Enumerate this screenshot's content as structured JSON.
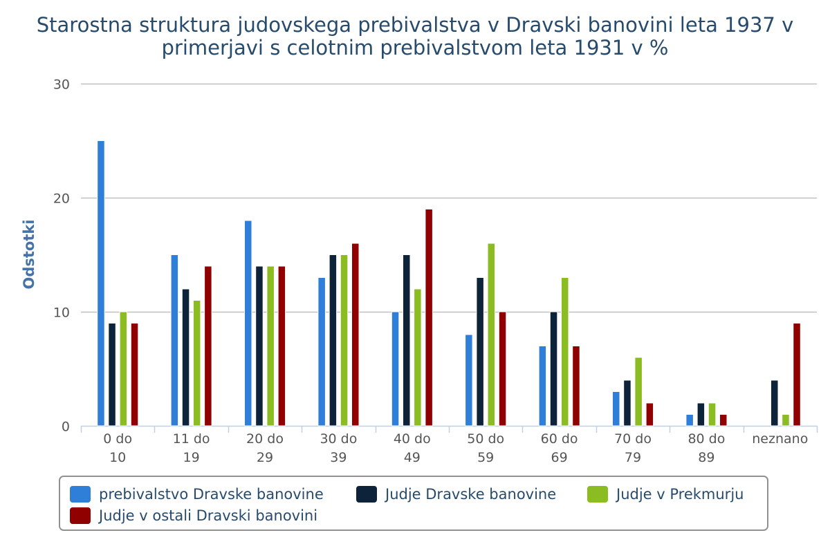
{
  "chart_data": {
    "type": "bar",
    "title": "Starostna struktura judovskega prebivalstva v Dravski banovini leta 1937 v primerjavi s celotnim prebivalstvom leta 1931 v %",
    "ylabel": "Odstotki",
    "xlabel": "",
    "ylim": [
      0,
      30
    ],
    "yticks": [
      0,
      10,
      20,
      30
    ],
    "grid": true,
    "legend_position": "bottom",
    "categories": [
      [
        "0 do",
        "10"
      ],
      [
        "11 do",
        "19"
      ],
      [
        "20 do",
        "29"
      ],
      [
        "30 do",
        "39"
      ],
      [
        "40 do",
        "49"
      ],
      [
        "50 do",
        "59"
      ],
      [
        "60 do",
        "69"
      ],
      [
        "70 do",
        "79"
      ],
      [
        "80 do",
        "89"
      ],
      [
        "neznano"
      ]
    ],
    "series": [
      {
        "name": "prebivalstvo Dravske banovine",
        "color": "#2f7ed8",
        "values": [
          25,
          15,
          18,
          13,
          10,
          8,
          7,
          3,
          1,
          0
        ]
      },
      {
        "name": "Judje Dravske banovine",
        "color": "#0d233a",
        "values": [
          9,
          12,
          14,
          15,
          15,
          13,
          10,
          4,
          2,
          4
        ]
      },
      {
        "name": "Judje v Prekmurju",
        "color": "#8bbc21",
        "values": [
          10,
          11,
          14,
          15,
          12,
          16,
          13,
          6,
          2,
          1
        ]
      },
      {
        "name": "Judje v ostali Dravski banovini",
        "color": "#910000",
        "values": [
          9,
          14,
          14,
          16,
          19,
          10,
          7,
          2,
          1,
          9
        ]
      }
    ]
  }
}
